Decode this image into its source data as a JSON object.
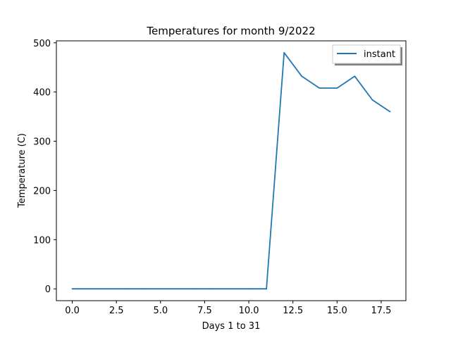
{
  "chart_data": {
    "type": "line",
    "title": "Temperatures for month 9/2022",
    "xlabel": "Days 1 to 31",
    "ylabel": "Temperature (C)",
    "xlim": [
      -0.9,
      18.9
    ],
    "ylim": [
      -24,
      504
    ],
    "xticks": [
      0.0,
      2.5,
      5.0,
      7.5,
      10.0,
      12.5,
      15.0,
      17.5
    ],
    "xtick_labels": [
      "0.0",
      "2.5",
      "5.0",
      "7.5",
      "10.0",
      "12.5",
      "15.0",
      "17.5"
    ],
    "yticks": [
      0,
      100,
      200,
      300,
      400,
      500
    ],
    "ytick_labels": [
      "0",
      "100",
      "200",
      "300",
      "400",
      "500"
    ],
    "grid": false,
    "legend_position": "top-right",
    "series": [
      {
        "name": "instant",
        "color": "#1f77b4",
        "x": [
          0,
          1,
          2,
          3,
          4,
          5,
          6,
          7,
          8,
          9,
          10,
          11,
          12,
          13,
          14,
          15,
          16,
          17,
          18
        ],
        "y": [
          0,
          0,
          0,
          0,
          0,
          0,
          0,
          0,
          0,
          0,
          0,
          0,
          480,
          432,
          408,
          408,
          432,
          384,
          360
        ]
      }
    ]
  }
}
